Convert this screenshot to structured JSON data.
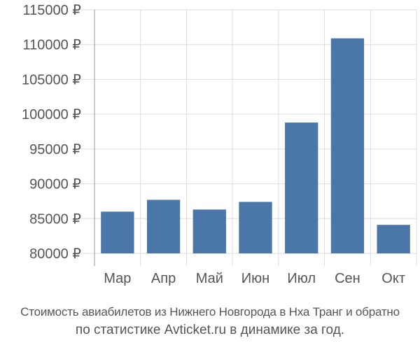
{
  "chart_data": {
    "type": "bar",
    "categories": [
      "Мар",
      "Апр",
      "Май",
      "Июн",
      "Июл",
      "Сен",
      "Окт"
    ],
    "values": [
      86000,
      87700,
      86300,
      87400,
      98800,
      110900,
      84100
    ],
    "yticks": [
      "80000 ₽",
      "85000 ₽",
      "90000 ₽",
      "95000 ₽",
      "100000 ₽",
      "105000 ₽",
      "110000 ₽",
      "115000 ₽"
    ],
    "ylim": [
      80000,
      115000
    ],
    "grid": true,
    "bar_color": "#4a76a8"
  },
  "caption": {
    "line1": "Стоимость авиабилетов из Нижнего Новгорода в Нха Транг и обратно",
    "line2": "по статистике Avticket.ru в динамике за год."
  }
}
